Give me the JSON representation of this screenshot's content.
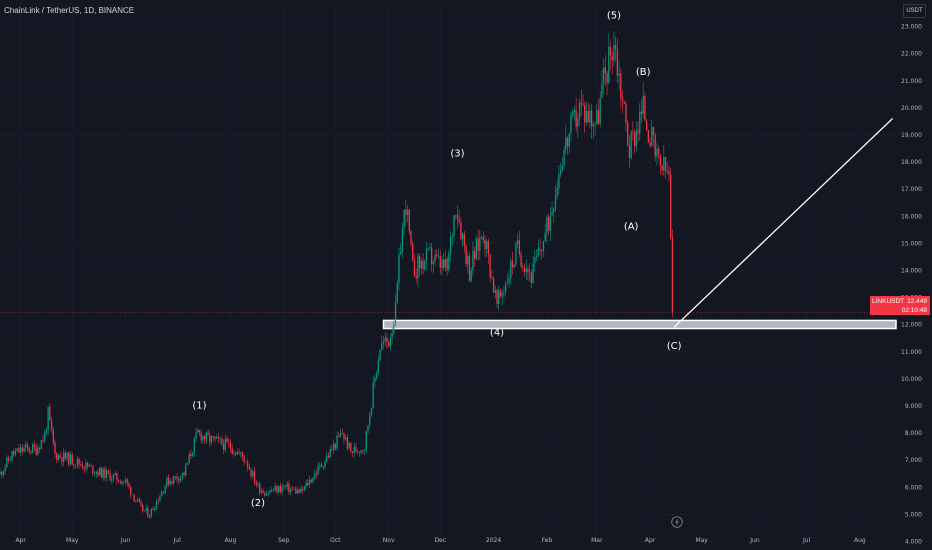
{
  "header": {
    "title": "ChainLink / TetherUS, 1D, BINANCE",
    "currency_button": "USDT"
  },
  "last_price": {
    "symbol": "LINKUSDT",
    "price": "12.449",
    "countdown": "02:10:48"
  },
  "icons": {
    "replay": "lightning-icon"
  },
  "colors": {
    "up": "#089981",
    "down": "#f23645",
    "background": "#131722",
    "axis_text": "#b2b5be"
  },
  "chart_data": {
    "type": "candlestick",
    "title": "ChainLink / TetherUS, 1D, BINANCE",
    "y_axis": {
      "ticks": [
        "4.000",
        "5.000",
        "6.000",
        "7.000",
        "8.000",
        "9.000",
        "10.000",
        "11.000",
        "12.000",
        "13.000",
        "14.000",
        "15.000",
        "16.000",
        "17.000",
        "18.000",
        "19.000",
        "20.000",
        "21.000",
        "22.000",
        "23.000"
      ],
      "range": [
        3.9,
        23.9
      ]
    },
    "x_axis": {
      "ticks": [
        "Apr",
        "May",
        "Jun",
        "Jul",
        "Aug",
        "Sep",
        "Oct",
        "Nov",
        "Dec",
        "2024",
        "Feb",
        "Mar",
        "Apr",
        "May",
        "Jun",
        "Jul",
        "Aug"
      ],
      "range": [
        "2023-03-20",
        "2024-08-22"
      ]
    },
    "price_path": [
      [
        "2023-03-20",
        6.5
      ],
      [
        "2023-03-27",
        7.2
      ],
      [
        "2023-04-03",
        7.4
      ],
      [
        "2023-04-10",
        7.4
      ],
      [
        "2023-04-15",
        7.9
      ],
      [
        "2023-04-17",
        8.7
      ],
      [
        "2023-04-21",
        7.2
      ],
      [
        "2023-05-01",
        7.0
      ],
      [
        "2023-05-15",
        6.6
      ],
      [
        "2023-06-01",
        6.2
      ],
      [
        "2023-06-10",
        5.2
      ],
      [
        "2023-06-15",
        5.0
      ],
      [
        "2023-06-25",
        6.2
      ],
      [
        "2023-07-05",
        6.5
      ],
      [
        "2023-07-13",
        8.0
      ],
      [
        "2023-07-18",
        7.8
      ],
      [
        "2023-08-01",
        7.5
      ],
      [
        "2023-08-10",
        7.0
      ],
      [
        "2023-08-17",
        6.0
      ],
      [
        "2023-08-22",
        5.8
      ],
      [
        "2023-09-01",
        6.0
      ],
      [
        "2023-09-11",
        5.8
      ],
      [
        "2023-09-25",
        7.0
      ],
      [
        "2023-10-05",
        8.0
      ],
      [
        "2023-10-10",
        7.3
      ],
      [
        "2023-10-18",
        7.5
      ],
      [
        "2023-10-22",
        9.2
      ],
      [
        "2023-10-27",
        11.2
      ],
      [
        "2023-11-01",
        11.4
      ],
      [
        "2023-11-05",
        12.5
      ],
      [
        "2023-11-08",
        15.0
      ],
      [
        "2023-11-11",
        16.5
      ],
      [
        "2023-11-15",
        14.0
      ],
      [
        "2023-11-25",
        14.5
      ],
      [
        "2023-12-05",
        14.0
      ],
      [
        "2023-12-10",
        16.5
      ],
      [
        "2023-12-18",
        14.0
      ],
      [
        "2023-12-26",
        15.5
      ],
      [
        "2024-01-03",
        12.7
      ],
      [
        "2024-01-15",
        14.8
      ],
      [
        "2024-01-23",
        13.8
      ],
      [
        "2024-02-01",
        15.5
      ],
      [
        "2024-02-10",
        18.3
      ],
      [
        "2024-02-20",
        20.0
      ],
      [
        "2024-03-01",
        19.5
      ],
      [
        "2024-03-05",
        21.0
      ],
      [
        "2024-03-11",
        22.5
      ],
      [
        "2024-03-20",
        18.5
      ],
      [
        "2024-03-28",
        20.0
      ],
      [
        "2024-04-05",
        18.0
      ],
      [
        "2024-04-12",
        17.5
      ],
      [
        "2024-04-14",
        12.45
      ]
    ],
    "wave_labels": [
      {
        "label": "(1)",
        "date": "2023-07-14",
        "value": 8.9
      },
      {
        "label": "(2)",
        "date": "2023-08-17",
        "value": 5.3
      },
      {
        "label": "(3)",
        "date": "2023-12-11",
        "value": 18.2
      },
      {
        "label": "(4)",
        "date": "2024-01-03",
        "value": 11.6
      },
      {
        "label": "(5)",
        "date": "2024-03-11",
        "value": 23.3
      },
      {
        "label": "(B)",
        "date": "2024-03-28",
        "value": 21.2
      },
      {
        "label": "(A)",
        "date": "2024-03-21",
        "value": 15.5
      },
      {
        "label": "(C)",
        "date": "2024-04-15",
        "value": 11.1
      }
    ],
    "support_zone": {
      "from": "2023-10-29",
      "to": "2024-08-22",
      "low": 11.85,
      "high": 12.15
    },
    "projection_line": {
      "from": [
        "2024-04-15",
        11.9
      ],
      "to": [
        "2024-08-20",
        19.6
      ]
    },
    "current_price_line": 12.449
  }
}
